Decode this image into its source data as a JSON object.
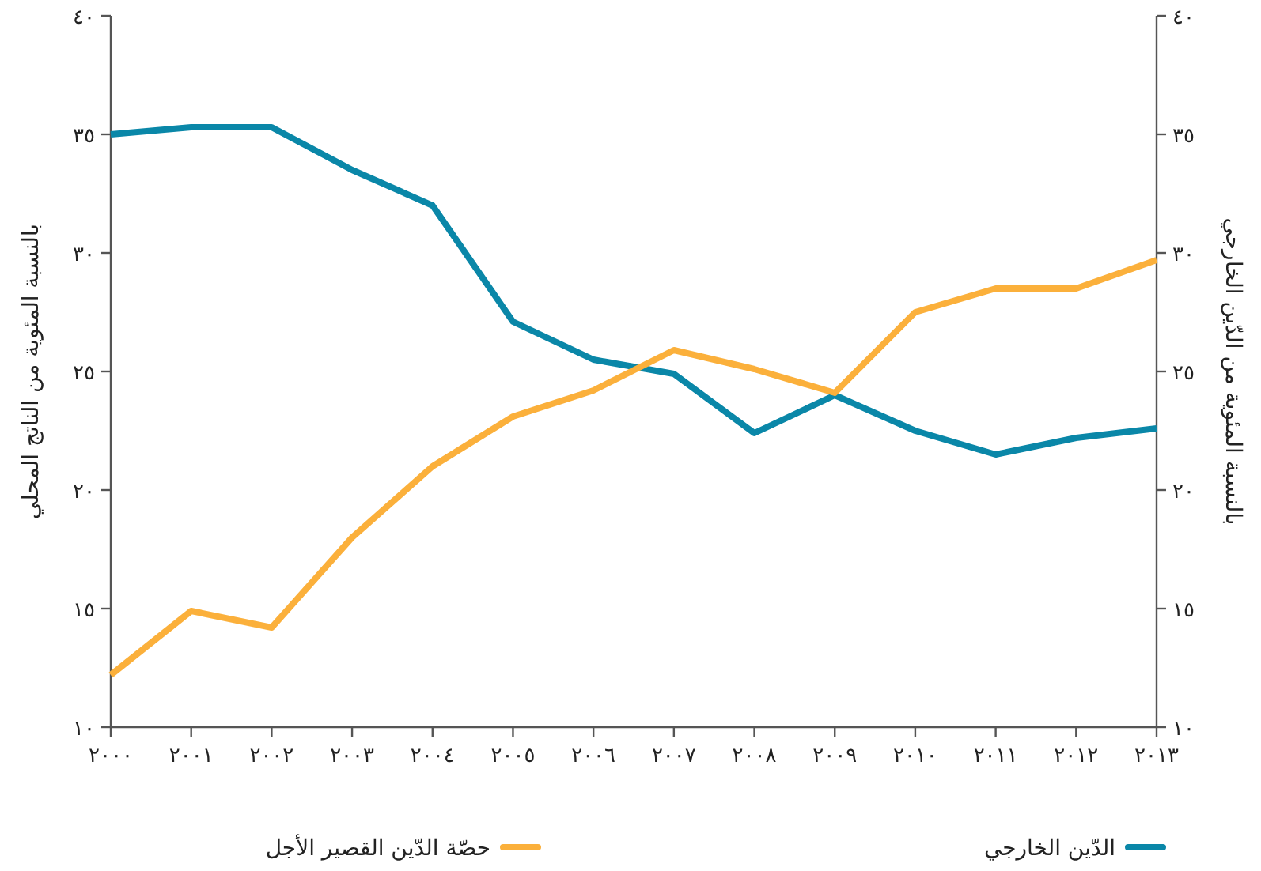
{
  "chart_data": {
    "type": "line",
    "xlabel": null,
    "ylabel": "بالنسبة المئوية من الناتج المحلي",
    "y2label": "بالنسبة المئوية من الدّين الخارجي",
    "x": [
      2000,
      2001,
      2002,
      2003,
      2004,
      2005,
      2006,
      2007,
      2008,
      2009,
      2010,
      2011,
      2012,
      2013
    ],
    "xlim": [
      2000,
      2013
    ],
    "xticks": [
      {
        "value": 2000,
        "label": "٢٠٠٠"
      },
      {
        "value": 2001,
        "label": "٢٠٠١"
      },
      {
        "value": 2002,
        "label": "٢٠٠٢"
      },
      {
        "value": 2003,
        "label": "٢٠٠٣"
      },
      {
        "value": 2004,
        "label": "٢٠٠٤"
      },
      {
        "value": 2005,
        "label": "٢٠٠٥"
      },
      {
        "value": 2006,
        "label": "٢٠٠٦"
      },
      {
        "value": 2007,
        "label": "٢٠٠٧"
      },
      {
        "value": 2008,
        "label": "٢٠٠٨"
      },
      {
        "value": 2009,
        "label": "٢٠٠٩"
      },
      {
        "value": 2010,
        "label": "٢٠١٠"
      },
      {
        "value": 2011,
        "label": "٢٠١١"
      },
      {
        "value": 2012,
        "label": "٢٠١٢"
      },
      {
        "value": 2013,
        "label": "٢٠١٣"
      }
    ],
    "ylim": [
      10,
      40
    ],
    "yticks": [
      {
        "value": 10,
        "label": "١٠"
      },
      {
        "value": 15,
        "label": "١٥"
      },
      {
        "value": 20,
        "label": "٢٠"
      },
      {
        "value": 25,
        "label": "٢٥"
      },
      {
        "value": 30,
        "label": "٣٠"
      },
      {
        "value": 35,
        "label": "٣٥"
      },
      {
        "value": 40,
        "label": "٤٠"
      }
    ],
    "y2lim": [
      10,
      40
    ],
    "y2ticks": [
      {
        "value": 10,
        "label": "١٠"
      },
      {
        "value": 15,
        "label": "١٥"
      },
      {
        "value": 20,
        "label": "٢٠"
      },
      {
        "value": 25,
        "label": "٢٥"
      },
      {
        "value": 30,
        "label": "٣٠"
      },
      {
        "value": 35,
        "label": "٣٥"
      },
      {
        "value": 40,
        "label": "٤٠"
      }
    ],
    "series": [
      {
        "name": "الدّين الخارجي",
        "color": "#0a87a8",
        "values": [
          35,
          35.3,
          35.3,
          33.5,
          32,
          27.1,
          25.5,
          24.9,
          22.4,
          24,
          22.5,
          21.5,
          22.2,
          22.6
        ]
      },
      {
        "name": "حصّة الدّين القصير الأجل",
        "color": "#fbb03b",
        "axis": "y2",
        "values": [
          12.2,
          14.9,
          14.2,
          18,
          21,
          23.1,
          24.2,
          25.9,
          25.1,
          24.1,
          27.5,
          28.5,
          28.5,
          29.7
        ]
      }
    ],
    "legend": "bottom",
    "grid": false,
    "marker": "none",
    "line_style": "solid"
  }
}
